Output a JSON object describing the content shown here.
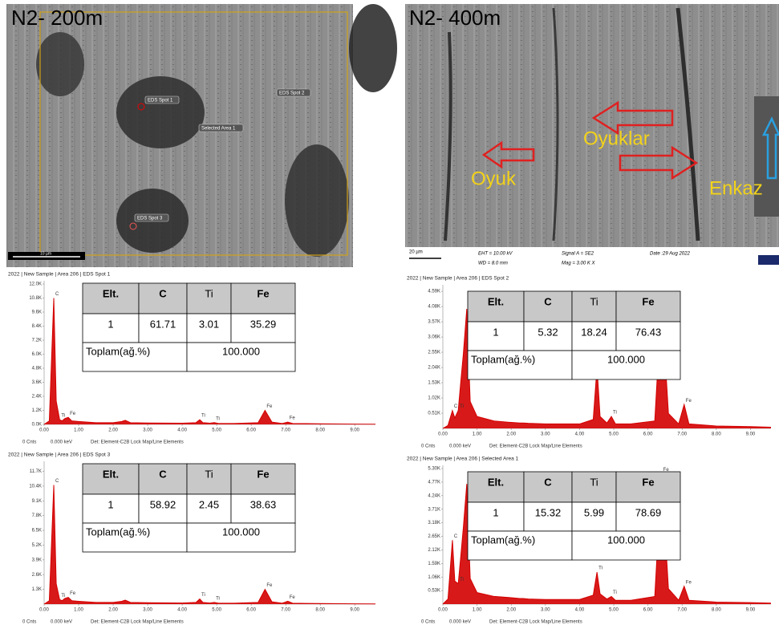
{
  "images": [
    {
      "title": "N2- 200m",
      "labels": [
        "EDS Spot 1",
        "EDS Spot 2",
        "Selected Area 1",
        "EDS Spot 3"
      ],
      "scale": "10 µm"
    },
    {
      "title": "N2- 400m",
      "labels": [
        "Oyuk",
        "Oyuklar",
        "Enkaz"
      ],
      "scale": "20 µm",
      "metadata": [
        "EHT = 10.00 kV",
        "WD = 8.0 mm",
        "Signal A = SE2",
        "Mag = 3.00 K X",
        "Date :29 Aug 2022"
      ]
    }
  ],
  "chart_data": [
    {
      "type": "line",
      "title": "2022 | New Sample | Area 206 | EDS Spot 1",
      "color": "#d40000",
      "x": [
        0,
        0.15,
        0.28,
        0.35,
        0.45,
        0.52,
        0.6,
        0.7,
        0.8,
        1.0,
        1.5,
        2.0,
        2.25,
        2.35,
        2.5,
        3.0,
        4.0,
        4.4,
        4.51,
        4.6,
        4.8,
        4.93,
        5.05,
        5.5,
        6.2,
        6.4,
        6.6,
        6.9,
        7.06,
        7.2,
        8.0,
        9.0,
        9.6
      ],
      "values": [
        0,
        300,
        10800,
        2000,
        400,
        300,
        500,
        600,
        300,
        250,
        150,
        150,
        250,
        350,
        150,
        120,
        100,
        150,
        400,
        150,
        100,
        150,
        80,
        80,
        150,
        1200,
        200,
        80,
        200,
        80,
        50,
        30,
        20
      ],
      "xlim": [
        0,
        9.6
      ],
      "xticks": [
        {
          "value": 0,
          "label": "0.00"
        },
        {
          "value": 1,
          "label": "1.00"
        },
        {
          "value": 2,
          "label": "2.00"
        },
        {
          "value": 3,
          "label": "3.00"
        },
        {
          "value": 4,
          "label": "4.00"
        },
        {
          "value": 5,
          "label": "5.00"
        },
        {
          "value": 6,
          "label": "6.00"
        },
        {
          "value": 7,
          "label": "7.00"
        },
        {
          "value": 8,
          "label": "8.00"
        },
        {
          "value": 9,
          "label": "9.00"
        }
      ],
      "ylim": [
        0,
        12000
      ],
      "yticks": [
        {
          "value": 0,
          "label": "0.0K"
        },
        {
          "value": 1200,
          "label": "1.2K"
        },
        {
          "value": 2400,
          "label": "2.4K"
        },
        {
          "value": 3600,
          "label": "3.6K"
        },
        {
          "value": 4800,
          "label": "4.8K"
        },
        {
          "value": 6000,
          "label": "6.0K"
        },
        {
          "value": 7200,
          "label": "7.2K"
        },
        {
          "value": 8400,
          "label": "8.4K"
        },
        {
          "value": 9600,
          "label": "9.6K"
        },
        {
          "value": 10800,
          "label": "10.8K"
        },
        {
          "value": 12000,
          "label": "12.0K"
        }
      ],
      "peak_labels": [
        {
          "label": "C",
          "x": 0.28
        },
        {
          "label": "Ti",
          "x": 0.45
        },
        {
          "label": "Fe",
          "x": 0.7
        },
        {
          "label": "Ti",
          "x": 4.51
        },
        {
          "label": "Ti",
          "x": 4.93
        },
        {
          "label": "Fe",
          "x": 6.4
        },
        {
          "label": "Fe",
          "x": 7.06
        }
      ],
      "table": {
        "header": [
          "Elt.",
          "C",
          "Ti",
          "Fe"
        ],
        "row": [
          "1",
          "61.71",
          "3.01",
          "35.29"
        ],
        "total": [
          "Toplam(ağ.%)",
          "100.000"
        ]
      },
      "footer": [
        "0 Cnts",
        "0.000 keV",
        "Det: Element-C2B Lock Map/Line Elements"
      ]
    },
    {
      "type": "line",
      "title": "2022 | New Sample | Area 206 | EDS Spot 2",
      "color": "#d40000",
      "x": [
        0,
        0.15,
        0.28,
        0.35,
        0.45,
        0.52,
        0.6,
        0.7,
        0.8,
        1.0,
        1.5,
        2.0,
        2.25,
        2.35,
        2.5,
        3.0,
        4.0,
        4.4,
        4.51,
        4.6,
        4.8,
        4.93,
        5.05,
        5.5,
        6.2,
        6.4,
        6.6,
        6.9,
        7.06,
        7.2,
        8.0,
        9.0,
        9.6
      ],
      "values": [
        0,
        100,
        600,
        350,
        600,
        1500,
        2500,
        4000,
        900,
        400,
        250,
        200,
        180,
        180,
        170,
        150,
        150,
        300,
        2050,
        400,
        180,
        400,
        150,
        150,
        250,
        4300,
        500,
        150,
        800,
        150,
        80,
        60,
        40
      ],
      "xlim": [
        0,
        9.6
      ],
      "xticks": [
        {
          "value": 0,
          "label": "0.00"
        },
        {
          "value": 1,
          "label": "1.00"
        },
        {
          "value": 2,
          "label": "2.00"
        },
        {
          "value": 3,
          "label": "3.00"
        },
        {
          "value": 4,
          "label": "4.00"
        },
        {
          "value": 5,
          "label": "5.00"
        },
        {
          "value": 6,
          "label": "6.00"
        },
        {
          "value": 7,
          "label": "7.00"
        },
        {
          "value": 8,
          "label": "8.00"
        },
        {
          "value": 9,
          "label": "9.00"
        }
      ],
      "ylim": [
        0,
        4700
      ],
      "yticks": [
        {
          "value": 510,
          "label": "0.51K"
        },
        {
          "value": 1020,
          "label": "1.02K"
        },
        {
          "value": 1530,
          "label": "1.53K"
        },
        {
          "value": 2040,
          "label": "2.04K"
        },
        {
          "value": 2550,
          "label": "2.55K"
        },
        {
          "value": 3060,
          "label": "3.06K"
        },
        {
          "value": 3570,
          "label": "3.57K"
        },
        {
          "value": 4080,
          "label": "4.08K"
        },
        {
          "value": 4590,
          "label": "4.59K"
        }
      ],
      "peak_labels": [
        {
          "label": "C",
          "x": 0.28
        },
        {
          "label": "Ti",
          "x": 0.45
        },
        {
          "label": "Fe",
          "x": 0.7
        },
        {
          "label": "Ti",
          "x": 4.51
        },
        {
          "label": "Ti",
          "x": 4.93
        },
        {
          "label": "Fe",
          "x": 6.4
        },
        {
          "label": "Fe",
          "x": 7.06
        }
      ],
      "table": {
        "header": [
          "Elt.",
          "C",
          "Ti",
          "Fe"
        ],
        "row": [
          "1",
          "5.32",
          "18.24",
          "76.43"
        ],
        "total": [
          "Toplam(ağ.%)",
          "100.000"
        ]
      },
      "footer": [
        "0 Cnts",
        "0.000 keV",
        "Det: Element-C2B Lock Map/Line Elements"
      ]
    },
    {
      "type": "line",
      "title": "2022 | New Sample | Area 206 | EDS Spot 3",
      "color": "#d40000",
      "x": [
        0,
        0.15,
        0.28,
        0.35,
        0.45,
        0.52,
        0.6,
        0.7,
        0.8,
        1.0,
        1.5,
        2.0,
        2.25,
        2.35,
        2.5,
        3.0,
        4.0,
        4.4,
        4.51,
        4.6,
        4.8,
        4.93,
        5.05,
        5.5,
        6.2,
        6.4,
        6.6,
        6.9,
        7.06,
        7.2,
        8.0,
        9.0,
        9.6
      ],
      "values": [
        0,
        300,
        10500,
        1800,
        400,
        300,
        500,
        600,
        300,
        250,
        150,
        150,
        250,
        350,
        150,
        120,
        100,
        150,
        450,
        150,
        100,
        150,
        80,
        80,
        150,
        1300,
        200,
        80,
        250,
        80,
        50,
        30,
        20
      ],
      "xlim": [
        0,
        9.6
      ],
      "xticks": [
        {
          "value": 0,
          "label": "0.00"
        },
        {
          "value": 1,
          "label": "1.00"
        },
        {
          "value": 2,
          "label": "2.00"
        },
        {
          "value": 3,
          "label": "3.00"
        },
        {
          "value": 4,
          "label": "4.00"
        },
        {
          "value": 5,
          "label": "5.00"
        },
        {
          "value": 6,
          "label": "6.00"
        },
        {
          "value": 7,
          "label": "7.00"
        },
        {
          "value": 8,
          "label": "8.00"
        },
        {
          "value": 9,
          "label": "9.00"
        }
      ],
      "ylim": [
        0,
        12300
      ],
      "yticks": [
        {
          "value": 1300,
          "label": "1.3K"
        },
        {
          "value": 2600,
          "label": "2.6K"
        },
        {
          "value": 3900,
          "label": "3.9K"
        },
        {
          "value": 5200,
          "label": "5.2K"
        },
        {
          "value": 6500,
          "label": "6.5K"
        },
        {
          "value": 7800,
          "label": "7.8K"
        },
        {
          "value": 9100,
          "label": "9.1K"
        },
        {
          "value": 10400,
          "label": "10.4K"
        },
        {
          "value": 11700,
          "label": "11.7K"
        }
      ],
      "peak_labels": [
        {
          "label": "C",
          "x": 0.28
        },
        {
          "label": "Ti",
          "x": 0.45
        },
        {
          "label": "Fe",
          "x": 0.7
        },
        {
          "label": "Ti",
          "x": 4.51
        },
        {
          "label": "Ti",
          "x": 4.93
        },
        {
          "label": "Fe",
          "x": 6.4
        },
        {
          "label": "Fe",
          "x": 7.06
        }
      ],
      "table": {
        "header": [
          "Elt.",
          "C",
          "Ti",
          "Fe"
        ],
        "row": [
          "1",
          "58.92",
          "2.45",
          "38.63"
        ],
        "total": [
          "Toplam(ağ.%)",
          "100.000"
        ]
      },
      "footer": [
        "0 Cnts",
        "0.000 keV",
        "Det: Element-C2B Lock Map/Line Elements"
      ]
    },
    {
      "type": "line",
      "title": "2022 | New Sample | Area 206 | Selected Area 1",
      "color": "#d40000",
      "x": [
        0,
        0.15,
        0.28,
        0.35,
        0.45,
        0.52,
        0.6,
        0.7,
        0.8,
        1.0,
        1.5,
        2.0,
        2.25,
        2.35,
        2.5,
        3.0,
        4.0,
        4.4,
        4.51,
        4.6,
        4.8,
        4.93,
        5.05,
        5.5,
        6.2,
        6.4,
        6.6,
        6.9,
        7.06,
        7.2,
        8.0,
        9.0,
        9.6
      ],
      "values": [
        0,
        200,
        2500,
        900,
        800,
        1800,
        3000,
        4700,
        1000,
        450,
        300,
        250,
        220,
        220,
        200,
        180,
        180,
        350,
        1250,
        400,
        200,
        300,
        150,
        150,
        300,
        5100,
        600,
        150,
        700,
        150,
        80,
        60,
        40
      ],
      "xlim": [
        0,
        9.6
      ],
      "xticks": [
        {
          "value": 0,
          "label": "0.00"
        },
        {
          "value": 1,
          "label": "1.00"
        },
        {
          "value": 2,
          "label": "2.00"
        },
        {
          "value": 3,
          "label": "3.00"
        },
        {
          "value": 4,
          "label": "4.00"
        },
        {
          "value": 5,
          "label": "5.00"
        },
        {
          "value": 6,
          "label": "6.00"
        },
        {
          "value": 7,
          "label": "7.00"
        },
        {
          "value": 8,
          "label": "8.00"
        },
        {
          "value": 9,
          "label": "9.00"
        }
      ],
      "ylim": [
        0,
        5300
      ],
      "yticks": [
        {
          "value": 530,
          "label": "0.53K"
        },
        {
          "value": 1060,
          "label": "1.06K"
        },
        {
          "value": 1590,
          "label": "1.59K"
        },
        {
          "value": 2120,
          "label": "2.12K"
        },
        {
          "value": 2650,
          "label": "2.65K"
        },
        {
          "value": 3180,
          "label": "3.18K"
        },
        {
          "value": 3710,
          "label": "3.71K"
        },
        {
          "value": 4240,
          "label": "4.24K"
        },
        {
          "value": 4770,
          "label": "4.77K"
        },
        {
          "value": 5300,
          "label": "5.30K"
        }
      ],
      "peak_labels": [
        {
          "label": "C",
          "x": 0.28
        },
        {
          "label": "Ti",
          "x": 0.45
        },
        {
          "label": "Fe",
          "x": 0.7
        },
        {
          "label": "Ti",
          "x": 4.51
        },
        {
          "label": "Ti",
          "x": 4.93
        },
        {
          "label": "Fe",
          "x": 6.4
        },
        {
          "label": "Fe",
          "x": 7.06
        }
      ],
      "table": {
        "header": [
          "Elt.",
          "C",
          "Ti",
          "Fe"
        ],
        "row": [
          "1",
          "15.32",
          "5.99",
          "78.69"
        ],
        "total": [
          "Toplam(ağ.%)",
          "100.000"
        ]
      },
      "footer": [
        "0 Cnts",
        "0.000 keV",
        "Det: Element-C2B Lock Map/Line Elements"
      ]
    }
  ]
}
